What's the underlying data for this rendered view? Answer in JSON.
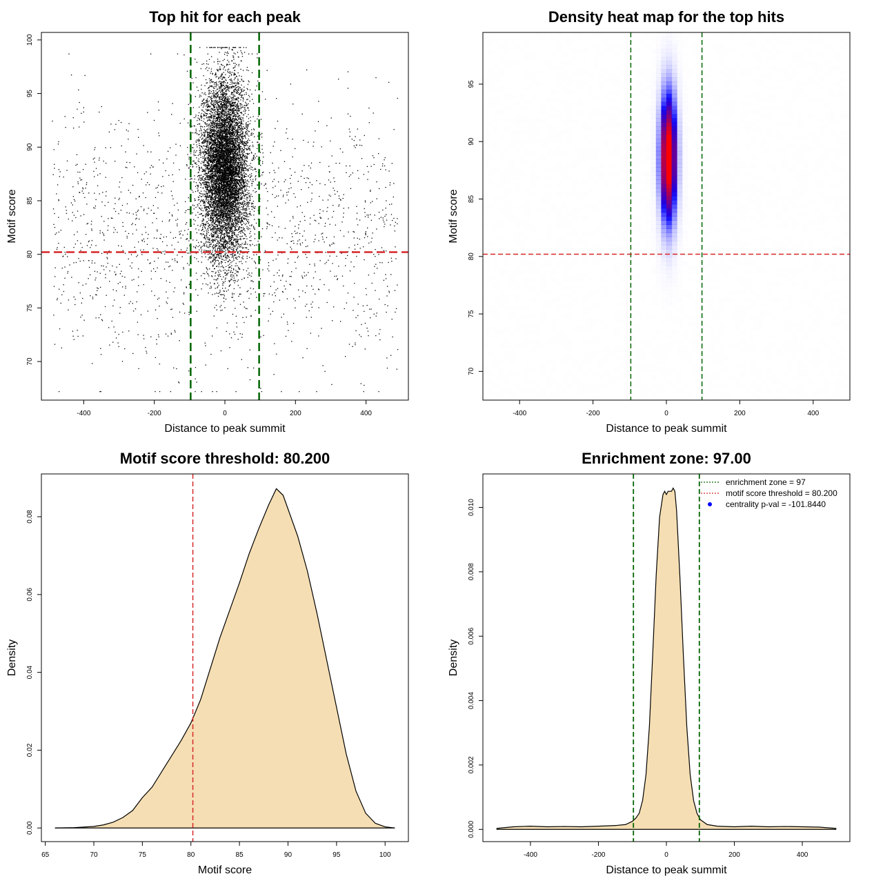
{
  "chart_data": [
    {
      "id": "scatter",
      "type": "scatter",
      "title": "Top hit for each peak",
      "xlabel": "Distance to peak summit",
      "ylabel": "Motif score",
      "xlim": [
        -520,
        520
      ],
      "ylim": [
        66.4,
        100.7
      ],
      "xticks": [
        -400,
        -200,
        0,
        200,
        400
      ],
      "yticks": [
        70,
        75,
        80,
        85,
        90,
        95,
        100
      ],
      "xtick_labels": [
        "-400",
        "-200",
        "0",
        "200",
        "400"
      ],
      "ytick_labels": [
        "70",
        "75",
        "80",
        "85",
        "90",
        "95",
        "100"
      ],
      "n_background_points": 1500,
      "n_central_points": 9000,
      "central_x_sd": 33,
      "central_y_mean": 88,
      "central_y_sd": 4.2,
      "background_x_range": [
        -490,
        490
      ],
      "background_y_mean": 82,
      "background_y_sd": 6,
      "vlines": [
        -97,
        97
      ],
      "hline": 80.2,
      "colors": {
        "points": "#000000",
        "vline": "#006400",
        "hline": "#d62728"
      }
    },
    {
      "id": "heatmap",
      "type": "heatmap",
      "title": "Density heat map for the top hits",
      "xlabel": "Distance to peak summit",
      "ylabel": "Motif score",
      "xlim": [
        -500,
        500
      ],
      "ylim": [
        67.5,
        99.5
      ],
      "xticks": [
        -400,
        -200,
        0,
        200,
        400
      ],
      "yticks": [
        70,
        75,
        80,
        85,
        90,
        95
      ],
      "xtick_labels": [
        "-400",
        "-200",
        "0",
        "200",
        "400"
      ],
      "ytick_labels": [
        "70",
        "75",
        "80",
        "85",
        "90",
        "95"
      ],
      "peak_center": [
        5,
        88.6
      ],
      "peak_sd": [
        17,
        4.2
      ],
      "vlines": [
        -97,
        97
      ],
      "hline": 80.2,
      "colors": {
        "low": "#ffffff",
        "mid": "#0000ff",
        "high": "#ff0000",
        "vline": "#006400",
        "hline": "#d62728"
      }
    },
    {
      "id": "score-density",
      "type": "area",
      "title": "Motif score threshold: 80.200",
      "xlabel": "Motif score",
      "ylabel": "Density",
      "xlim": [
        64.6,
        102.4
      ],
      "ylim": [
        -0.0035,
        0.091
      ],
      "xticks": [
        65,
        70,
        75,
        80,
        85,
        90,
        95,
        100
      ],
      "yticks": [
        0.0,
        0.02,
        0.04,
        0.06,
        0.08
      ],
      "xtick_labels": [
        "65",
        "70",
        "75",
        "80",
        "85",
        "90",
        "95",
        "100"
      ],
      "ytick_labels": [
        "0.00",
        "0.02",
        "0.04",
        "0.06",
        "0.08"
      ],
      "x": [
        66,
        68,
        70,
        71,
        72,
        73,
        74,
        75,
        76,
        77,
        78,
        79,
        80,
        81,
        82,
        83,
        84,
        85,
        86,
        87,
        88,
        88.8,
        89.5,
        90,
        91,
        92,
        93,
        94,
        95,
        96,
        97,
        98,
        99,
        100,
        101
      ],
      "y": [
        0.0,
        0.0001,
        0.0004,
        0.0008,
        0.0015,
        0.0027,
        0.0045,
        0.0078,
        0.0105,
        0.0145,
        0.0185,
        0.0225,
        0.027,
        0.033,
        0.041,
        0.049,
        0.056,
        0.063,
        0.0705,
        0.077,
        0.083,
        0.0872,
        0.0855,
        0.082,
        0.075,
        0.066,
        0.055,
        0.043,
        0.031,
        0.019,
        0.0095,
        0.0038,
        0.0012,
        0.0003,
        0.0
      ],
      "vline": 80.2,
      "colors": {
        "fill": "#f5deb3",
        "line": "#000000",
        "vline": "#d62728"
      }
    },
    {
      "id": "dist-density",
      "type": "area",
      "title": "Enrichment zone: 97.00",
      "xlabel": "Distance to peak summit",
      "ylabel": "Density",
      "xlim": [
        -540,
        540
      ],
      "ylim": [
        -0.00038,
        0.01104
      ],
      "xticks": [
        -400,
        -200,
        0,
        200,
        400
      ],
      "yticks": [
        0.0,
        0.002,
        0.004,
        0.006,
        0.008,
        0.01
      ],
      "xtick_labels": [
        "-400",
        "-200",
        "0",
        "200",
        "400"
      ],
      "ytick_labels": [
        "0.000",
        "0.002",
        "0.004",
        "0.006",
        "0.008",
        "0.010"
      ],
      "x": [
        -500,
        -450,
        -400,
        -350,
        -300,
        -250,
        -200,
        -150,
        -120,
        -100,
        -90,
        -80,
        -70,
        -60,
        -50,
        -40,
        -30,
        -20,
        -10,
        -5,
        0,
        5,
        10,
        15,
        20,
        25,
        30,
        40,
        50,
        60,
        70,
        80,
        90,
        100,
        120,
        150,
        200,
        250,
        300,
        350,
        400,
        450,
        500
      ],
      "y": [
        3e-05,
        8e-05,
        0.0001,
        8e-05,
        9e-05,
        8e-05,
        0.0001,
        0.00012,
        0.00015,
        0.00025,
        0.00035,
        0.0005,
        0.0009,
        0.0017,
        0.0032,
        0.0055,
        0.0079,
        0.0097,
        0.0104,
        0.0105,
        0.0104,
        0.0105,
        0.0105,
        0.0105,
        0.0106,
        0.0105,
        0.0099,
        0.0078,
        0.0054,
        0.0032,
        0.0017,
        0.0009,
        0.0005,
        0.0003,
        0.00015,
        0.0001,
        8e-05,
        0.0001,
        8e-05,
        9e-05,
        8e-05,
        7e-05,
        3e-05
      ],
      "vlines": [
        -97,
        97
      ],
      "legend": {
        "position": "top-right",
        "entries": [
          {
            "label": "enrichment zone = 97",
            "color": "#006400",
            "symbol": "dotted-line"
          },
          {
            "label": "motif score threshold = 80.200",
            "color": "#d62728",
            "symbol": "dotted-line"
          },
          {
            "label": "centrality p-val = -101.8440",
            "color": "#0000ff",
            "symbol": "dot"
          }
        ]
      },
      "colors": {
        "fill": "#f5deb3",
        "line": "#000000",
        "vline": "#006400"
      }
    }
  ]
}
